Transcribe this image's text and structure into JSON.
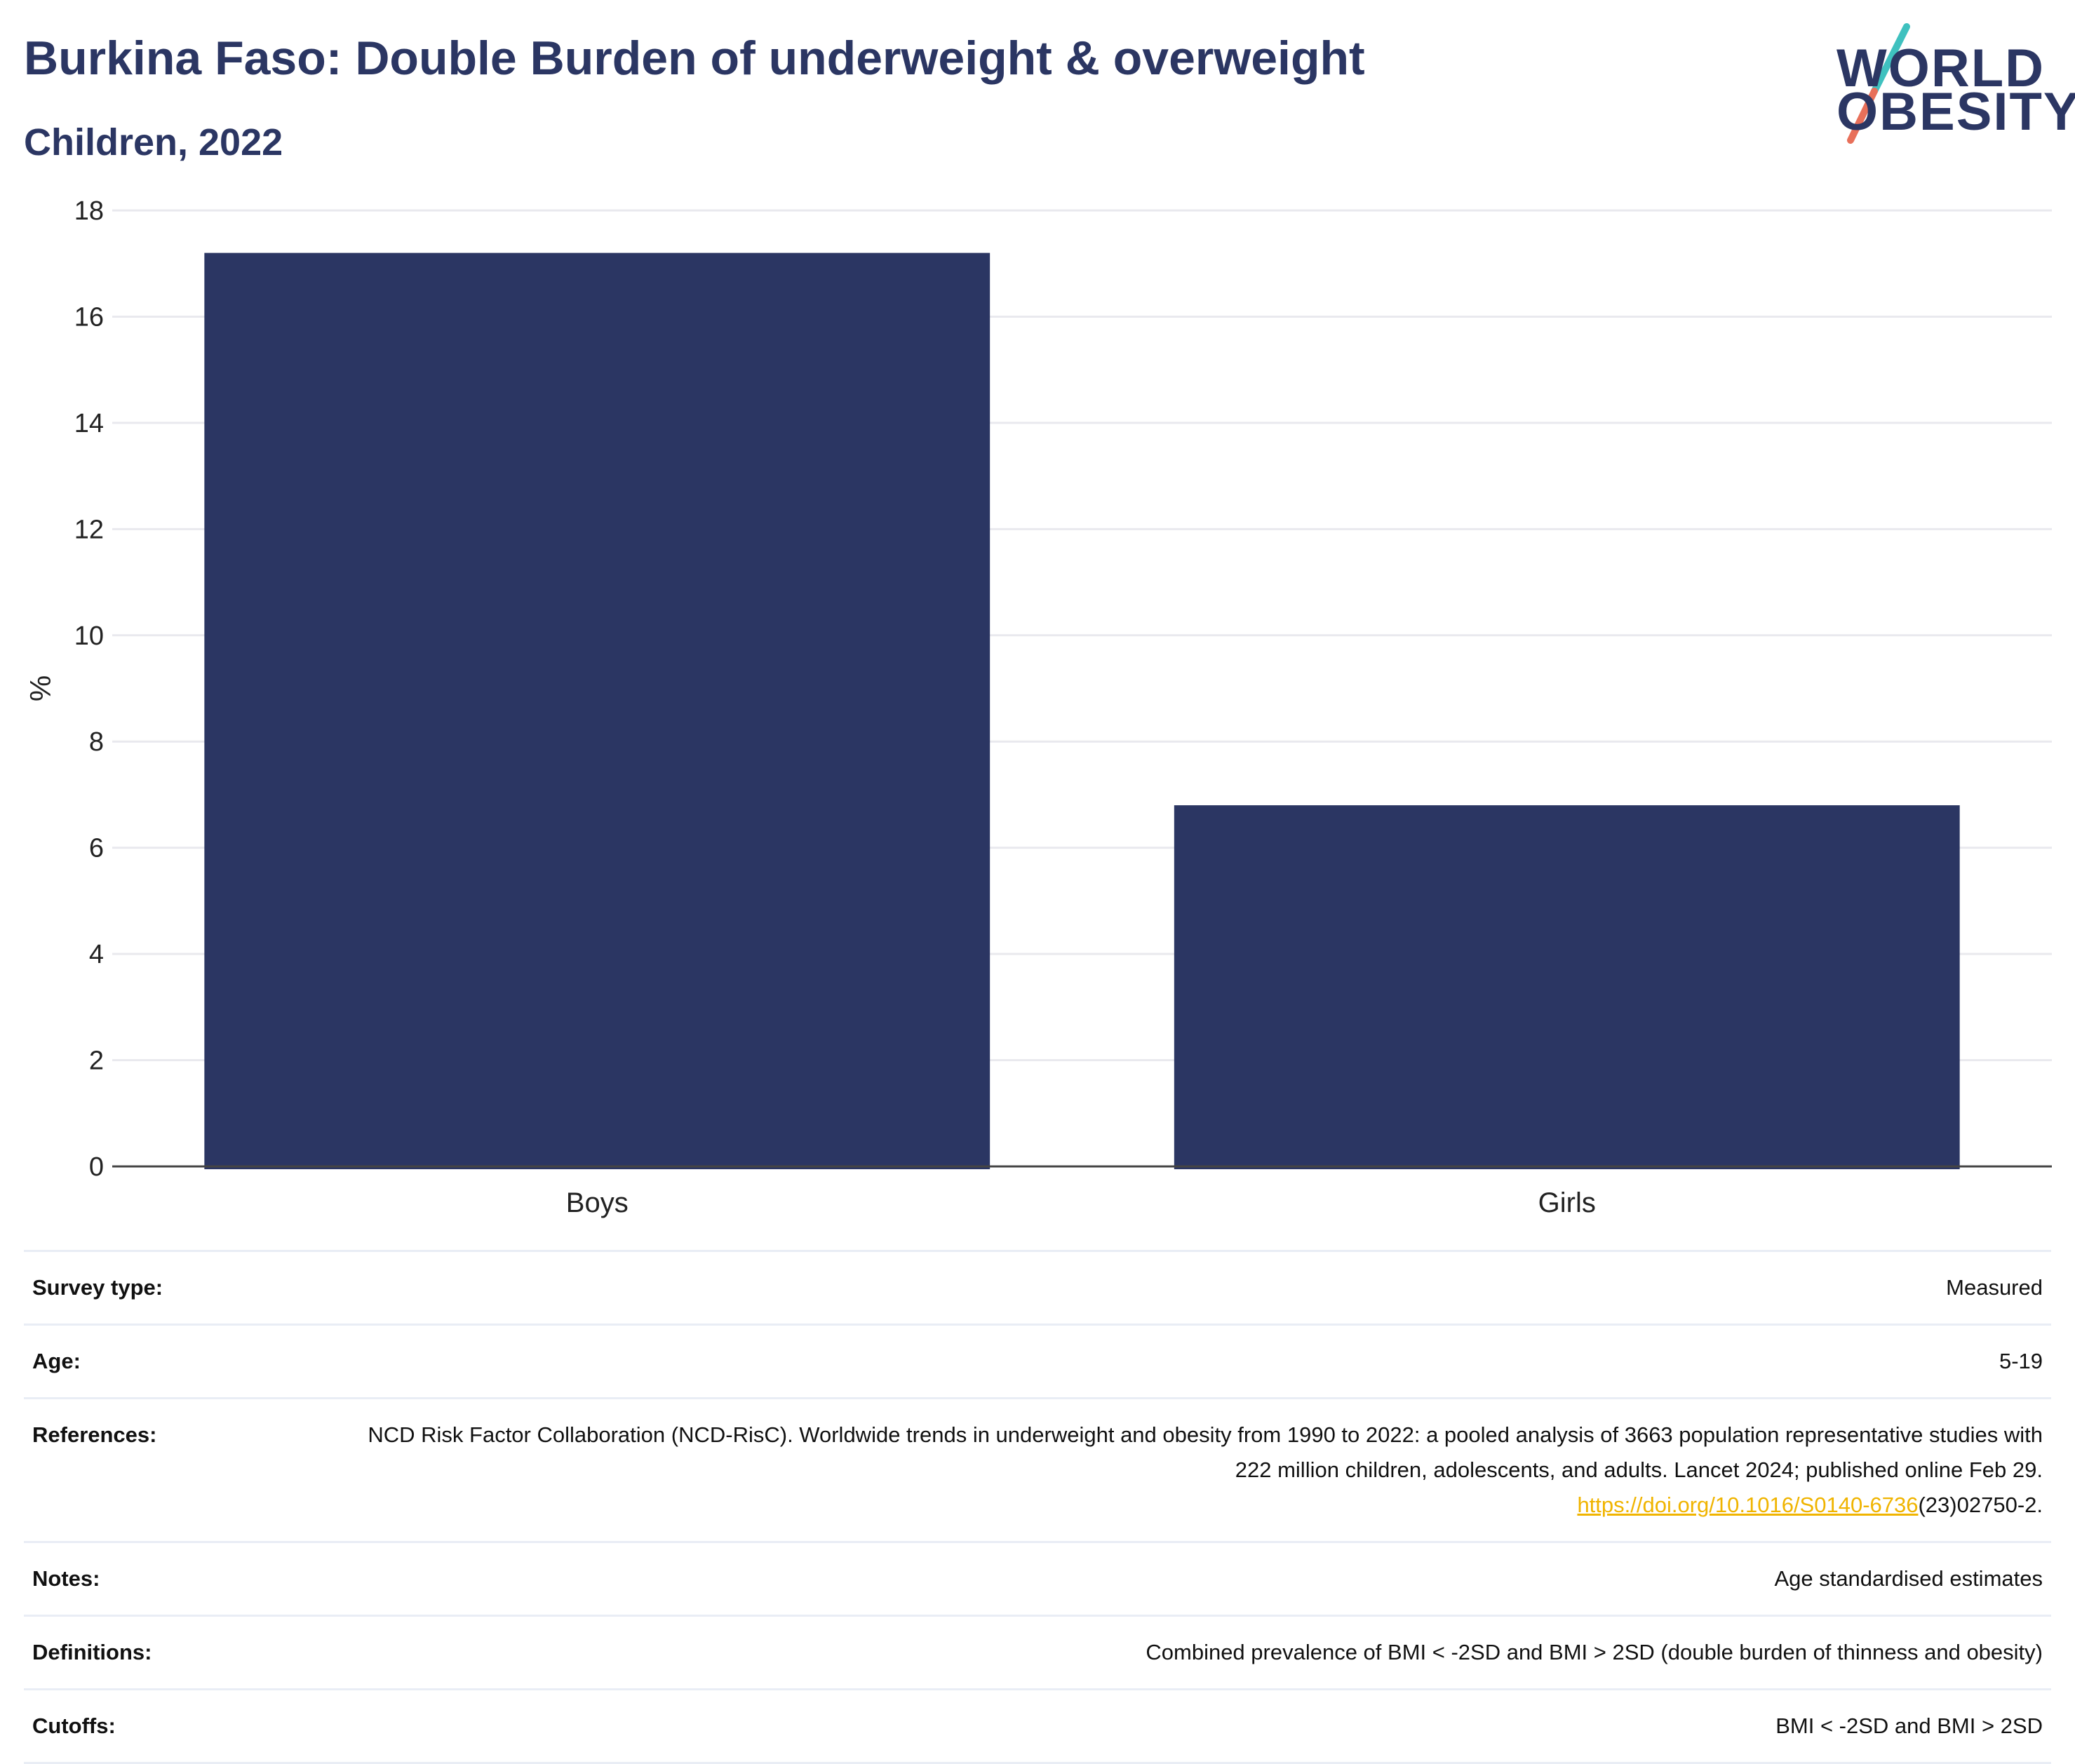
{
  "header": {
    "title": "Burkina Faso: Double Burden of underweight & overweight",
    "subtitle": "Children, 2022"
  },
  "logo": {
    "line1": "WORLD",
    "line2": "OBESITY",
    "accent_colors": [
      "#3fc1bf",
      "#e8705a"
    ]
  },
  "chart_data": {
    "type": "bar",
    "categories": [
      "Boys",
      "Girls"
    ],
    "values": [
      17.2,
      6.8
    ],
    "ylabel": "%",
    "xlabel": "",
    "ylim": [
      0,
      18
    ],
    "yticks": [
      0,
      2,
      4,
      6,
      8,
      10,
      12,
      14,
      16,
      18
    ],
    "grid": true,
    "bar_color": "#2b3663"
  },
  "info": {
    "rows": [
      {
        "key": "Survey type:",
        "value": "Measured"
      },
      {
        "key": "Age:",
        "value": "5-19"
      },
      {
        "key": "References:",
        "value": "NCD Risk Factor Collaboration (NCD-RisC). Worldwide trends in underweight and obesity from 1990 to 2022: a pooled analysis of 3663 population representative studies with 222 million children, adolescents, and adults. Lancet 2024; published online Feb 29.",
        "link": "https://doi.org/10.1016/S0140-6736",
        "link_suffix": "(23)02750-2."
      },
      {
        "key": "Notes:",
        "value": "Age standardised estimates"
      },
      {
        "key": "Definitions:",
        "value": "Combined prevalence of BMI < -2SD and BMI > 2SD (double burden of thinness and obesity)"
      },
      {
        "key": "Cutoffs:",
        "value": "BMI < -2SD and BMI > 2SD"
      }
    ]
  }
}
